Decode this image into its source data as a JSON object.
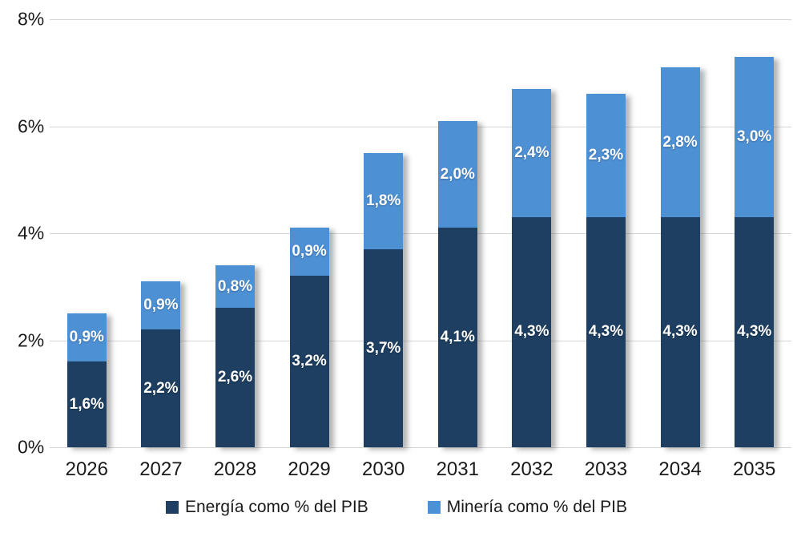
{
  "chart_data": {
    "type": "bar",
    "stacked": true,
    "categories": [
      "2026",
      "2027",
      "2028",
      "2029",
      "2030",
      "2031",
      "2032",
      "2033",
      "2034",
      "2035"
    ],
    "series": [
      {
        "name": "Energía como % del PIB",
        "color": "#1e3f61",
        "values": [
          1.6,
          2.2,
          2.6,
          3.2,
          3.7,
          4.1,
          4.3,
          4.3,
          4.3,
          4.3
        ],
        "labels": [
          "1,6%",
          "2,2%",
          "2,6%",
          "3,2%",
          "3,7%",
          "4,1%",
          "4,3%",
          "4,3%",
          "4,3%",
          "4,3%"
        ]
      },
      {
        "name": "Minería como % del PIB",
        "color": "#4e90d4",
        "values": [
          0.9,
          0.9,
          0.8,
          0.9,
          1.8,
          2.0,
          2.4,
          2.3,
          2.8,
          3.0
        ],
        "labels": [
          "0,9%",
          "0,9%",
          "0,8%",
          "0,9%",
          "1,8%",
          "2,0%",
          "2,4%",
          "2,3%",
          "2,8%",
          "3,0%"
        ]
      }
    ],
    "title": "",
    "xlabel": "",
    "ylabel": "",
    "ylim": [
      0,
      8
    ],
    "yticks": [
      {
        "value": 0,
        "label": "0%"
      },
      {
        "value": 2,
        "label": "2%"
      },
      {
        "value": 4,
        "label": "4%"
      },
      {
        "value": 6,
        "label": "6%"
      },
      {
        "value": 8,
        "label": "8%"
      }
    ],
    "grid": true,
    "gridline_color": "#d6d6d6",
    "legend_position": "bottom"
  }
}
